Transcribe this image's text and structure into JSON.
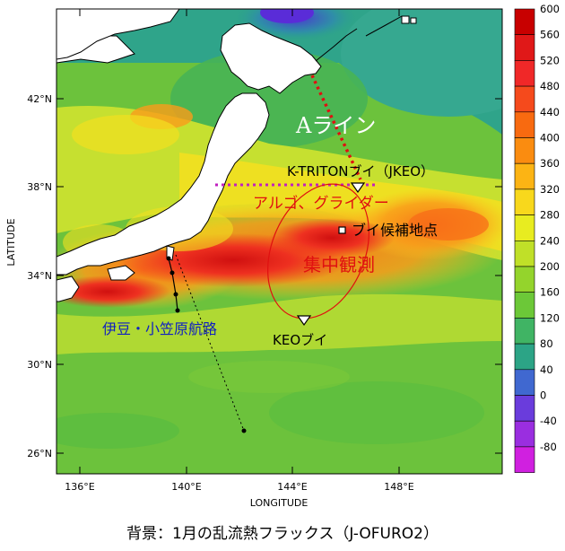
{
  "map": {
    "xlabel": "LONGITUDE",
    "ylabel": "LATITUDE",
    "lon_ticks": [
      "136°E",
      "140°E",
      "144°E",
      "148°E"
    ],
    "lat_ticks": [
      "42°N",
      "38°N",
      "34°N",
      "30°N",
      "26°N"
    ],
    "annotations": {
      "a_line": "Aライン",
      "k_triton": "K-TRITONブイ（JKEO）",
      "argo": "アルゴ、グライダー",
      "buoy_candidate": "ブイ候補地点",
      "intensive": "集中観測",
      "izu_route": "伊豆・小笠原航路",
      "keo": "KEOブイ"
    },
    "colors": {
      "a_line": "#e01010",
      "argo_line": "#c020c0",
      "intensive": "#e01010",
      "izu_route": "#1020c0",
      "ellipse": "#e01010"
    }
  },
  "colorbar": {
    "labels": [
      "600",
      "560",
      "520",
      "480",
      "440",
      "400",
      "360",
      "320",
      "280",
      "240",
      "200",
      "160",
      "120",
      "80",
      "40",
      "0",
      "-40",
      "-80"
    ],
    "colors": [
      "#c80000",
      "#e01818",
      "#f02828",
      "#f54a1c",
      "#f86a10",
      "#fa8c10",
      "#fcb414",
      "#f8d81c",
      "#e8ec20",
      "#c0e028",
      "#94d42c",
      "#6cc838",
      "#40b464",
      "#2ca486",
      "#4068d0",
      "#6a3cdc",
      "#9a2ee0",
      "#d020e0"
    ]
  },
  "caption": "背景：1月の乱流熱フラックス（J-OFURO2）"
}
